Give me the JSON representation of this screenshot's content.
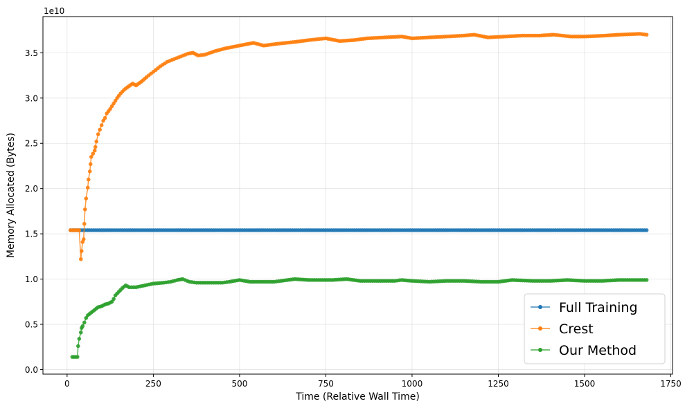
{
  "chart_data": {
    "type": "line",
    "xlabel": "Time (Relative Wall Time)",
    "ylabel": "Memory Allocated (Bytes)",
    "offset_label": "1e10",
    "xlim": [
      -70,
      1755
    ],
    "ylim": [
      -0.05,
      3.9
    ],
    "y_scale": "1e10",
    "xticks": [
      0,
      250,
      500,
      750,
      1000,
      1250,
      1500,
      1750
    ],
    "xtick_labels": [
      "0",
      "250",
      "500",
      "750",
      "1000",
      "1250",
      "1500",
      "1750"
    ],
    "yticks": [
      0.0,
      0.5,
      1.0,
      1.5,
      2.0,
      2.5,
      3.0,
      3.5
    ],
    "ytick_labels": [
      "0.0",
      "0.5",
      "1.0",
      "1.5",
      "2.0",
      "2.5",
      "3.0",
      "3.5"
    ],
    "grid": true,
    "legend_position": "lower-right",
    "series": [
      {
        "name": "Full Training",
        "color": "#1f77b4",
        "points": [
          [
            10,
            1.54
          ],
          [
            1680,
            1.54
          ]
        ]
      },
      {
        "name": "Crest",
        "color": "#ff7f0e",
        "points": [
          [
            10,
            1.54
          ],
          [
            25,
            1.54
          ],
          [
            35,
            1.54
          ],
          [
            40,
            1.22
          ],
          [
            42,
            1.31
          ],
          [
            45,
            1.41
          ],
          [
            48,
            1.44
          ],
          [
            50,
            1.61
          ],
          [
            52,
            1.77
          ],
          [
            55,
            1.89
          ],
          [
            60,
            2.01
          ],
          [
            62,
            2.1
          ],
          [
            66,
            2.19
          ],
          [
            68,
            2.27
          ],
          [
            70,
            2.35
          ],
          [
            80,
            2.42
          ],
          [
            82,
            2.46
          ],
          [
            85,
            2.52
          ],
          [
            90,
            2.6
          ],
          [
            95,
            2.65
          ],
          [
            100,
            2.7
          ],
          [
            105,
            2.75
          ],
          [
            110,
            2.78
          ],
          [
            115,
            2.83
          ],
          [
            125,
            2.88
          ],
          [
            135,
            2.94
          ],
          [
            145,
            3.0
          ],
          [
            155,
            3.05
          ],
          [
            165,
            3.09
          ],
          [
            175,
            3.12
          ],
          [
            190,
            3.16
          ],
          [
            200,
            3.14
          ],
          [
            215,
            3.18
          ],
          [
            230,
            3.23
          ],
          [
            250,
            3.29
          ],
          [
            270,
            3.35
          ],
          [
            290,
            3.4
          ],
          [
            310,
            3.43
          ],
          [
            330,
            3.46
          ],
          [
            350,
            3.49
          ],
          [
            365,
            3.5
          ],
          [
            380,
            3.47
          ],
          [
            400,
            3.48
          ],
          [
            430,
            3.52
          ],
          [
            460,
            3.55
          ],
          [
            500,
            3.58
          ],
          [
            540,
            3.61
          ],
          [
            570,
            3.58
          ],
          [
            610,
            3.6
          ],
          [
            660,
            3.62
          ],
          [
            700,
            3.64
          ],
          [
            750,
            3.66
          ],
          [
            790,
            3.63
          ],
          [
            830,
            3.64
          ],
          [
            870,
            3.66
          ],
          [
            920,
            3.67
          ],
          [
            970,
            3.68
          ],
          [
            1000,
            3.66
          ],
          [
            1050,
            3.67
          ],
          [
            1100,
            3.68
          ],
          [
            1150,
            3.69
          ],
          [
            1180,
            3.7
          ],
          [
            1220,
            3.67
          ],
          [
            1270,
            3.68
          ],
          [
            1320,
            3.69
          ],
          [
            1370,
            3.69
          ],
          [
            1410,
            3.7
          ],
          [
            1460,
            3.68
          ],
          [
            1500,
            3.68
          ],
          [
            1560,
            3.69
          ],
          [
            1600,
            3.7
          ],
          [
            1660,
            3.71
          ],
          [
            1680,
            3.7
          ]
        ]
      },
      {
        "name": "Our Method",
        "color": "#2ca02c",
        "points": [
          [
            15,
            0.14
          ],
          [
            25,
            0.14
          ],
          [
            30,
            0.14
          ],
          [
            32,
            0.26
          ],
          [
            35,
            0.34
          ],
          [
            40,
            0.41
          ],
          [
            42,
            0.46
          ],
          [
            45,
            0.48
          ],
          [
            50,
            0.52
          ],
          [
            55,
            0.57
          ],
          [
            60,
            0.6
          ],
          [
            70,
            0.63
          ],
          [
            80,
            0.66
          ],
          [
            90,
            0.69
          ],
          [
            100,
            0.7
          ],
          [
            110,
            0.72
          ],
          [
            120,
            0.73
          ],
          [
            130,
            0.75
          ],
          [
            135,
            0.78
          ],
          [
            140,
            0.82
          ],
          [
            150,
            0.86
          ],
          [
            160,
            0.9
          ],
          [
            170,
            0.93
          ],
          [
            180,
            0.91
          ],
          [
            200,
            0.91
          ],
          [
            225,
            0.93
          ],
          [
            250,
            0.95
          ],
          [
            280,
            0.96
          ],
          [
            300,
            0.97
          ],
          [
            320,
            0.99
          ],
          [
            335,
            1.0
          ],
          [
            355,
            0.97
          ],
          [
            375,
            0.96
          ],
          [
            400,
            0.96
          ],
          [
            450,
            0.96
          ],
          [
            470,
            0.97
          ],
          [
            500,
            0.99
          ],
          [
            530,
            0.97
          ],
          [
            600,
            0.97
          ],
          [
            620,
            0.98
          ],
          [
            660,
            1.0
          ],
          [
            700,
            0.99
          ],
          [
            770,
            0.99
          ],
          [
            810,
            1.0
          ],
          [
            850,
            0.98
          ],
          [
            950,
            0.98
          ],
          [
            970,
            0.99
          ],
          [
            1000,
            0.98
          ],
          [
            1050,
            0.97
          ],
          [
            1100,
            0.98
          ],
          [
            1150,
            0.98
          ],
          [
            1200,
            0.97
          ],
          [
            1250,
            0.97
          ],
          [
            1290,
            0.99
          ],
          [
            1350,
            0.98
          ],
          [
            1400,
            0.98
          ],
          [
            1450,
            0.99
          ],
          [
            1500,
            0.98
          ],
          [
            1550,
            0.98
          ],
          [
            1600,
            0.99
          ],
          [
            1680,
            0.99
          ]
        ]
      }
    ]
  }
}
